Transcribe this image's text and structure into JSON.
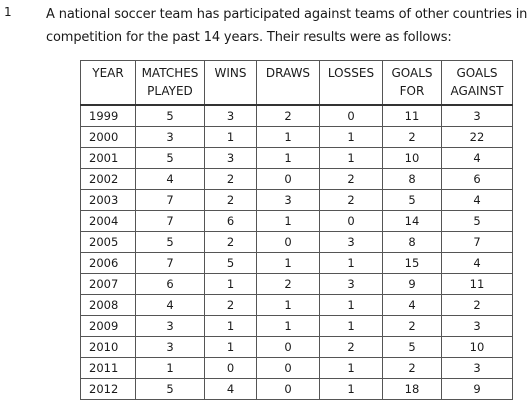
{
  "question": {
    "number": "1",
    "line1": "A national soccer team has participated against teams of other countries in a",
    "line2": "competition for the past 14 years. Their results were as follows:"
  },
  "table": {
    "headers": [
      {
        "line1": "YEAR",
        "line2": ""
      },
      {
        "line1": "MATCHES",
        "line2": "PLAYED"
      },
      {
        "line1": "WINS",
        "line2": ""
      },
      {
        "line1": "DRAWS",
        "line2": ""
      },
      {
        "line1": "LOSSES",
        "line2": ""
      },
      {
        "line1": "GOALS",
        "line2": "FOR"
      },
      {
        "line1": "GOALS",
        "line2": "AGAINST"
      }
    ],
    "rows": [
      [
        "1999",
        "5",
        "3",
        "2",
        "0",
        "11",
        "3"
      ],
      [
        "2000",
        "3",
        "1",
        "1",
        "1",
        "2",
        "22"
      ],
      [
        "2001",
        "5",
        "3",
        "1",
        "1",
        "10",
        "4"
      ],
      [
        "2002",
        "4",
        "2",
        "0",
        "2",
        "8",
        "6"
      ],
      [
        "2003",
        "7",
        "2",
        "3",
        "2",
        "5",
        "4"
      ],
      [
        "2004",
        "7",
        "6",
        "1",
        "0",
        "14",
        "5"
      ],
      [
        "2005",
        "5",
        "2",
        "0",
        "3",
        "8",
        "7"
      ],
      [
        "2006",
        "7",
        "5",
        "1",
        "1",
        "15",
        "4"
      ],
      [
        "2007",
        "6",
        "1",
        "2",
        "3",
        "9",
        "11"
      ],
      [
        "2008",
        "4",
        "2",
        "1",
        "1",
        "4",
        "2"
      ],
      [
        "2009",
        "3",
        "1",
        "1",
        "1",
        "2",
        "3"
      ],
      [
        "2010",
        "3",
        "1",
        "0",
        "2",
        "5",
        "10"
      ],
      [
        "2011",
        "1",
        "0",
        "0",
        "1",
        "2",
        "3"
      ],
      [
        "2012",
        "5",
        "4",
        "0",
        "1",
        "18",
        "9"
      ]
    ]
  }
}
